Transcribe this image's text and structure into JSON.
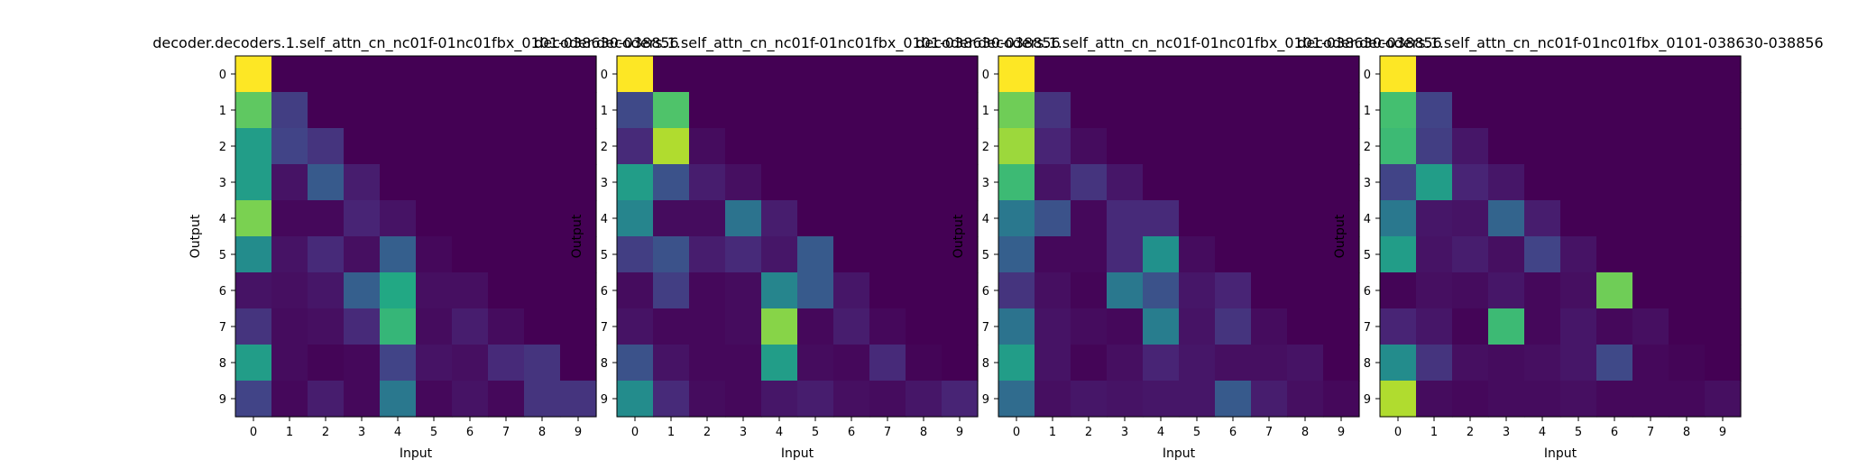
{
  "colormap": [
    "#440154",
    "#482475",
    "#414487",
    "#355f8d",
    "#2a788e",
    "#21918c",
    "#22a884",
    "#44bf70",
    "#7ad151",
    "#bddf26",
    "#fde725"
  ],
  "chart_data": [
    {
      "type": "heatmap",
      "title": "decoder.decoders.1.self_attn_cn_nc01f-01nc01fbx_0101-038630-038856",
      "xlabel": "Input",
      "ylabel": "Output",
      "x_ticks": [
        "0",
        "1",
        "2",
        "3",
        "4",
        "5",
        "6",
        "7",
        "8",
        "9"
      ],
      "y_ticks": [
        "0",
        "1",
        "2",
        "3",
        "4",
        "5",
        "6",
        "7",
        "8",
        "9"
      ],
      "value_range": [
        0,
        1
      ],
      "matrix": [
        [
          1.0,
          0,
          0,
          0,
          0,
          0,
          0,
          0,
          0,
          0
        ],
        [
          0.75,
          0.18,
          0,
          0,
          0,
          0,
          0,
          0,
          0,
          0
        ],
        [
          0.55,
          0.2,
          0.15,
          0,
          0,
          0,
          0,
          0,
          0,
          0
        ],
        [
          0.55,
          0.05,
          0.28,
          0.08,
          0,
          0,
          0,
          0,
          0,
          0
        ],
        [
          0.8,
          0.02,
          0.02,
          0.1,
          0.05,
          0,
          0,
          0,
          0,
          0
        ],
        [
          0.48,
          0.05,
          0.12,
          0.04,
          0.3,
          0.02,
          0,
          0,
          0,
          0
        ],
        [
          0.05,
          0.04,
          0.06,
          0.3,
          0.6,
          0.04,
          0.04,
          0,
          0,
          0
        ],
        [
          0.15,
          0.03,
          0.04,
          0.12,
          0.66,
          0.03,
          0.08,
          0.03,
          0,
          0
        ],
        [
          0.55,
          0.03,
          0.01,
          0.02,
          0.2,
          0.05,
          0.04,
          0.12,
          0.15,
          0
        ],
        [
          0.2,
          0.02,
          0.08,
          0.02,
          0.4,
          0.02,
          0.05,
          0.02,
          0.15,
          0.15
        ]
      ]
    },
    {
      "type": "heatmap",
      "title": "decoder.decoders.1.self_attn_cn_nc01f-01nc01fbx_0101-038630-038856",
      "xlabel": "Input",
      "ylabel": "Output",
      "x_ticks": [
        "0",
        "1",
        "2",
        "3",
        "4",
        "5",
        "6",
        "7",
        "8",
        "9"
      ],
      "y_ticks": [
        "0",
        "1",
        "2",
        "3",
        "4",
        "5",
        "6",
        "7",
        "8",
        "9"
      ],
      "value_range": [
        0,
        1
      ],
      "matrix": [
        [
          1.0,
          0,
          0,
          0,
          0,
          0,
          0,
          0,
          0,
          0
        ],
        [
          0.22,
          0.72,
          0,
          0,
          0,
          0,
          0,
          0,
          0,
          0
        ],
        [
          0.12,
          0.88,
          0.03,
          0,
          0,
          0,
          0,
          0,
          0,
          0
        ],
        [
          0.55,
          0.25,
          0.08,
          0.04,
          0,
          0,
          0,
          0,
          0,
          0
        ],
        [
          0.45,
          0.03,
          0.03,
          0.38,
          0.08,
          0,
          0,
          0,
          0,
          0
        ],
        [
          0.18,
          0.25,
          0.08,
          0.12,
          0.06,
          0.28,
          0,
          0,
          0,
          0
        ],
        [
          0.03,
          0.18,
          0.02,
          0.03,
          0.45,
          0.28,
          0.06,
          0,
          0,
          0
        ],
        [
          0.05,
          0.02,
          0.02,
          0.03,
          0.82,
          0.02,
          0.08,
          0.02,
          0,
          0
        ],
        [
          0.25,
          0.05,
          0.02,
          0.02,
          0.55,
          0.03,
          0.02,
          0.12,
          0.01,
          0
        ],
        [
          0.48,
          0.12,
          0.03,
          0.02,
          0.06,
          0.08,
          0.04,
          0.03,
          0.06,
          0.1
        ]
      ]
    },
    {
      "type": "heatmap",
      "title": "decoder.decoders.1.self_attn_cn_nc01f-01nc01fbx_0101-038630-038856",
      "xlabel": "Input",
      "ylabel": "Output",
      "x_ticks": [
        "0",
        "1",
        "2",
        "3",
        "4",
        "5",
        "6",
        "7",
        "8",
        "9"
      ],
      "y_ticks": [
        "0",
        "1",
        "2",
        "3",
        "4",
        "5",
        "6",
        "7",
        "8",
        "9"
      ],
      "value_range": [
        0,
        1
      ],
      "matrix": [
        [
          1.0,
          0,
          0,
          0,
          0,
          0,
          0,
          0,
          0,
          0
        ],
        [
          0.78,
          0.15,
          0,
          0,
          0,
          0,
          0,
          0,
          0,
          0
        ],
        [
          0.85,
          0.1,
          0.03,
          0,
          0,
          0,
          0,
          0,
          0,
          0
        ],
        [
          0.68,
          0.05,
          0.15,
          0.06,
          0,
          0,
          0,
          0,
          0,
          0
        ],
        [
          0.4,
          0.25,
          0.02,
          0.12,
          0.12,
          0,
          0,
          0,
          0,
          0
        ],
        [
          0.3,
          0.02,
          0.02,
          0.12,
          0.5,
          0.03,
          0,
          0,
          0,
          0
        ],
        [
          0.15,
          0.04,
          0.01,
          0.4,
          0.25,
          0.06,
          0.1,
          0,
          0,
          0
        ],
        [
          0.38,
          0.05,
          0.03,
          0.02,
          0.42,
          0.05,
          0.15,
          0.03,
          0,
          0
        ],
        [
          0.55,
          0.05,
          0.01,
          0.04,
          0.1,
          0.06,
          0.04,
          0.04,
          0.05,
          0
        ],
        [
          0.35,
          0.04,
          0.06,
          0.05,
          0.06,
          0.06,
          0.28,
          0.08,
          0.04,
          0.02
        ]
      ]
    },
    {
      "type": "heatmap",
      "title": "decoder.decoders.1.self_attn_cn_nc01f-01nc01fbx_0101-038630-038856",
      "xlabel": "Input",
      "ylabel": "Output",
      "x_ticks": [
        "0",
        "1",
        "2",
        "3",
        "4",
        "5",
        "6",
        "7",
        "8",
        "9"
      ],
      "y_ticks": [
        "0",
        "1",
        "2",
        "3",
        "4",
        "5",
        "6",
        "7",
        "8",
        "9"
      ],
      "value_range": [
        0,
        1
      ],
      "matrix": [
        [
          1.0,
          0,
          0,
          0,
          0,
          0,
          0,
          0,
          0,
          0
        ],
        [
          0.7,
          0.2,
          0,
          0,
          0,
          0,
          0,
          0,
          0,
          0
        ],
        [
          0.68,
          0.18,
          0.06,
          0,
          0,
          0,
          0,
          0,
          0,
          0
        ],
        [
          0.2,
          0.55,
          0.1,
          0.06,
          0,
          0,
          0,
          0,
          0,
          0
        ],
        [
          0.4,
          0.06,
          0.05,
          0.32,
          0.08,
          0,
          0,
          0,
          0,
          0
        ],
        [
          0.55,
          0.05,
          0.08,
          0.04,
          0.2,
          0.05,
          0,
          0,
          0,
          0
        ],
        [
          0.01,
          0.04,
          0.03,
          0.06,
          0.02,
          0.04,
          0.78,
          0,
          0,
          0
        ],
        [
          0.1,
          0.06,
          0.01,
          0.68,
          0.02,
          0.06,
          0.02,
          0.04,
          0,
          0
        ],
        [
          0.48,
          0.15,
          0.04,
          0.03,
          0.04,
          0.06,
          0.22,
          0.02,
          0.01,
          0
        ],
        [
          0.88,
          0.03,
          0.02,
          0.03,
          0.03,
          0.04,
          0.02,
          0.02,
          0.02,
          0.04
        ]
      ]
    }
  ]
}
